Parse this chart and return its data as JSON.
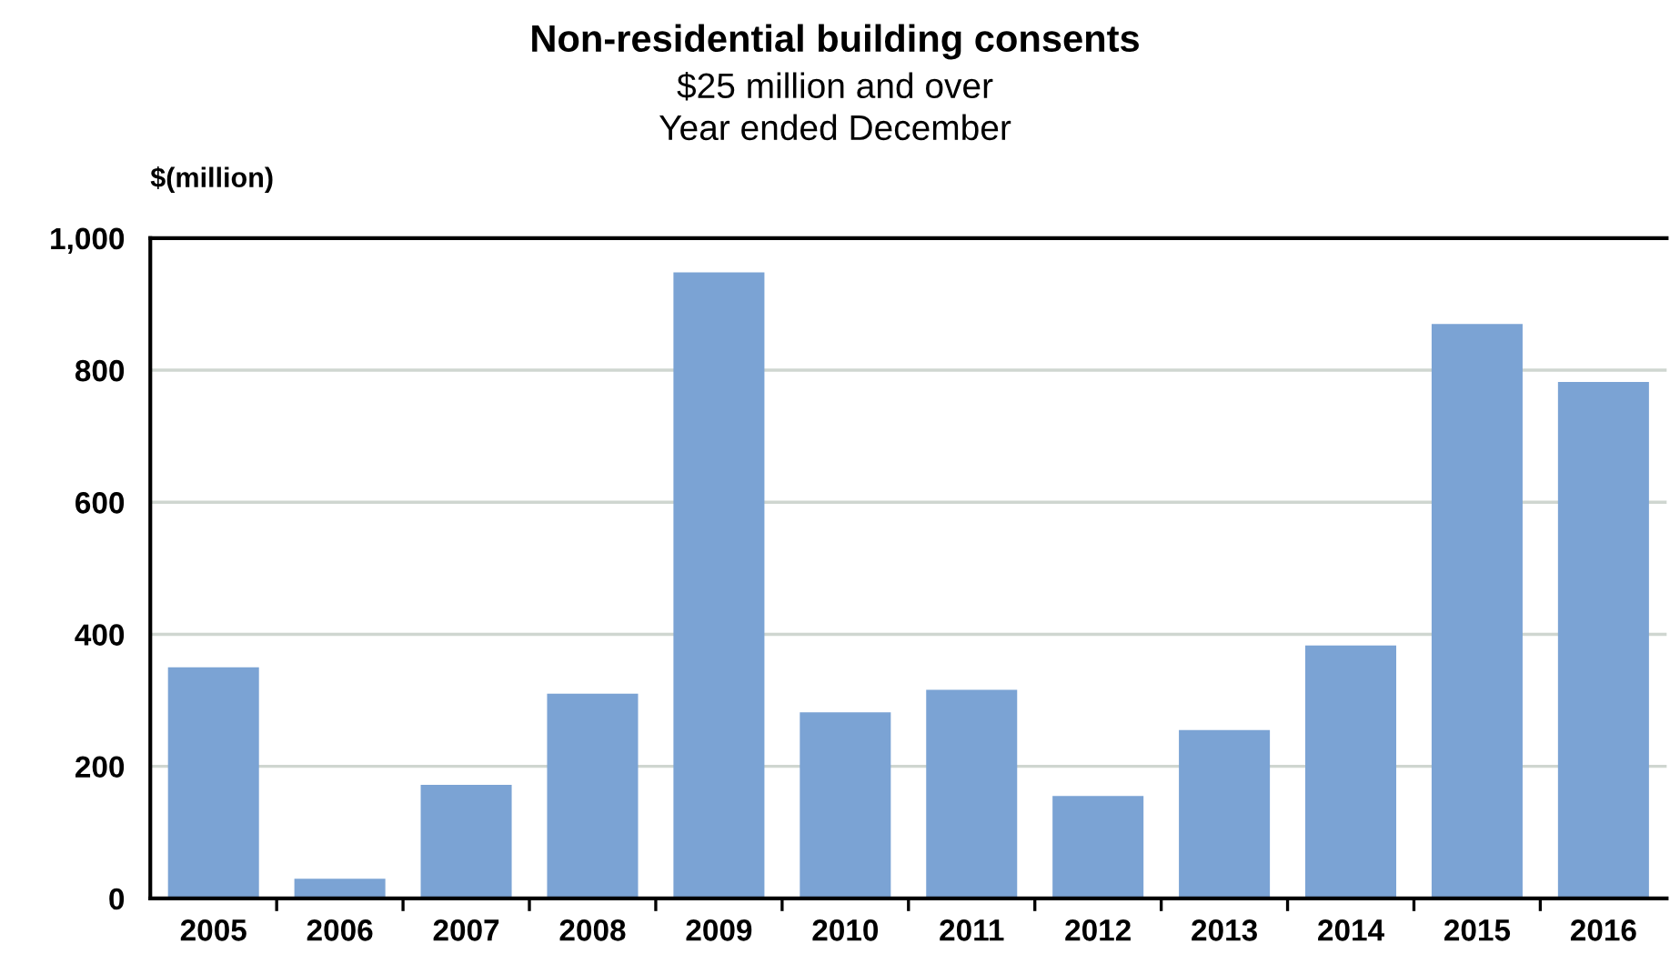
{
  "chart_data": {
    "type": "bar",
    "title": "Non-residential building consents",
    "subtitle": "$25 million and over\nYear ended December",
    "ylabel": "$(million)",
    "categories": [
      "2005",
      "2006",
      "2007",
      "2008",
      "2009",
      "2010",
      "2011",
      "2012",
      "2013",
      "2014",
      "2015",
      "2016"
    ],
    "values": [
      350,
      30,
      172,
      310,
      948,
      282,
      316,
      155,
      255,
      383,
      870,
      782
    ],
    "color": "#7ba3d4",
    "ylim": [
      0,
      1000
    ],
    "yticks": [
      0,
      200,
      400,
      600,
      800,
      {
        "value": 1000,
        "label": "1,000"
      }
    ],
    "grid": "y",
    "legend": false
  }
}
